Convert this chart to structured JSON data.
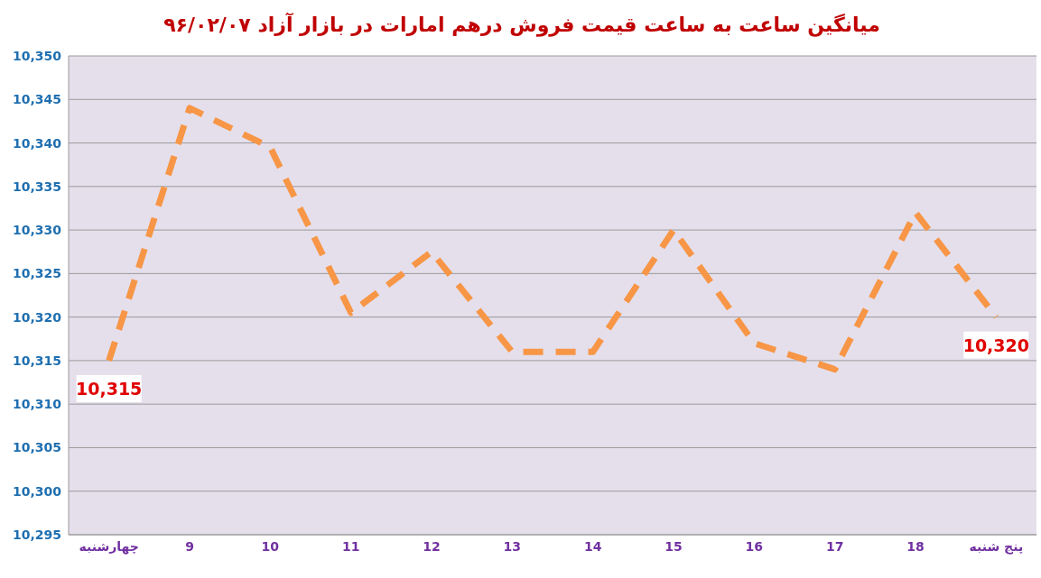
{
  "chart_data": {
    "type": "line",
    "title": "میانگین ساعت به ساعت قیمت فروش درهم امارات در بازار آزاد ۹۶/۰۲/۰۷",
    "categories": [
      "چهارشنبه",
      "9",
      "10",
      "11",
      "12",
      "13",
      "14",
      "15",
      "16",
      "17",
      "18",
      "پنج شنبه"
    ],
    "series": [
      {
        "color": "#f79646",
        "values": [
          10315,
          10344,
          10339.5,
          10320.5,
          10327.5,
          10316,
          10316,
          10330,
          10317,
          10314,
          10332,
          10320
        ]
      }
    ],
    "ylim": [
      10295,
      10350
    ],
    "yticks": [
      {
        "value": 10295,
        "label": "10,295"
      },
      {
        "value": 10300,
        "label": "10,300"
      },
      {
        "value": 10305,
        "label": "10,305"
      },
      {
        "value": 10310,
        "label": "10,310"
      },
      {
        "value": 10315,
        "label": "10,315"
      },
      {
        "value": 10320,
        "label": "10,320"
      },
      {
        "value": 10325,
        "label": "10,325"
      },
      {
        "value": 10330,
        "label": "10,330"
      },
      {
        "value": 10335,
        "label": "10,335"
      },
      {
        "value": 10340,
        "label": "10,340"
      },
      {
        "value": 10345,
        "label": "10,345"
      },
      {
        "value": 10350,
        "label": "10,350"
      }
    ],
    "grid": "y",
    "marker": "none",
    "line_style": "dashed",
    "annotations": [
      {
        "text": "10,315",
        "x": "چهارشنبه",
        "y": 10315
      },
      {
        "text": "10,320",
        "x": "پنج شنبه",
        "y": 10320
      }
    ]
  }
}
